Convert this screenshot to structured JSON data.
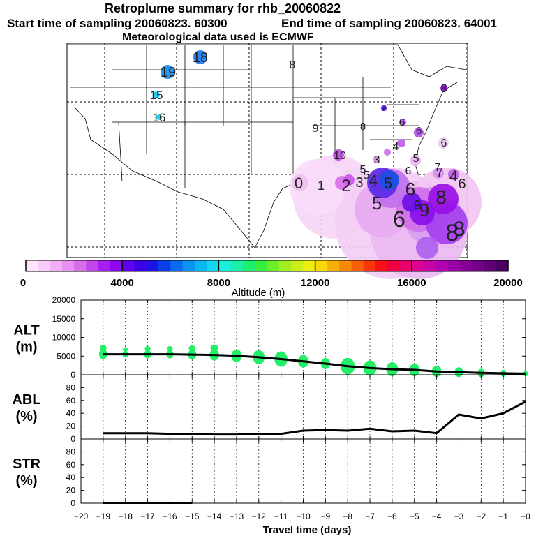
{
  "header": {
    "title": "Retroplume summary for rhb_20060822",
    "start_label": "Start time of sampling 20060823. 60300",
    "end_label": "End time of sampling 20060823. 64001",
    "met_label": "Meteorological data used is ECMWF"
  },
  "colorbar": {
    "label": "Altitude (m)",
    "ticks": [
      "0",
      "4000",
      "8000",
      "12000",
      "16000",
      "20000"
    ],
    "range": [
      0,
      20000
    ]
  },
  "colors": {
    "plume_light": "#f2c6f2",
    "plume_mid": "#d070e8",
    "plume_purple": "#9a10e6",
    "plume_blue": "#1a50e0",
    "alt_dots": "#22ee66"
  },
  "map": {
    "labels": [
      "18",
      "19",
      "15",
      "16",
      "8",
      "7",
      "8",
      "9",
      "8",
      "6",
      "6",
      "6",
      "5",
      "4",
      "3",
      "10",
      "5",
      "6",
      "7",
      "5",
      "0",
      "1",
      "2",
      "3",
      "4",
      "5",
      "6",
      "9",
      "8",
      "6",
      "4",
      "5",
      "6",
      "7",
      "8",
      "9",
      "8"
    ]
  },
  "chart_data": [
    {
      "type": "line",
      "name": "ALT",
      "ylabel": "ALT (m)",
      "ylabel_line1": "ALT",
      "ylabel_line2": "(m)",
      "ylim": [
        0,
        20000
      ],
      "yticks": [
        "0",
        "5000",
        "10000",
        "15000",
        "20000"
      ],
      "x": [
        -19,
        -18,
        -17,
        -16,
        -15,
        -14,
        -13,
        -12,
        -11,
        -10,
        -9,
        -8,
        -7,
        -6,
        -5,
        -4,
        -3,
        -2,
        -1,
        0
      ],
      "values": [
        5500,
        5500,
        5500,
        5500,
        5400,
        5300,
        5100,
        4700,
        4200,
        3600,
        3000,
        2300,
        1800,
        1500,
        1300,
        900,
        700,
        500,
        400,
        300
      ],
      "dot_sizes": [
        7,
        5,
        6,
        6,
        7,
        8,
        9,
        10,
        11,
        9,
        8,
        12,
        11,
        10,
        9,
        8,
        7,
        6,
        5,
        4
      ]
    },
    {
      "type": "line",
      "name": "ABL",
      "ylabel": "ABL (%)",
      "ylabel_line1": "ABL",
      "ylabel_line2": "(%)",
      "ylim": [
        0,
        100
      ],
      "yticks": [
        "0",
        "20",
        "40",
        "60",
        "80"
      ],
      "x": [
        -19,
        -18,
        -17,
        -16,
        -15,
        -14,
        -13,
        -12,
        -11,
        -10,
        -9,
        -8,
        -7,
        -6,
        -5,
        -4,
        -3,
        -2,
        -1,
        0
      ],
      "values": [
        9,
        9,
        9,
        8,
        8,
        7,
        7,
        8,
        8,
        13,
        14,
        13,
        16,
        12,
        13,
        9,
        38,
        32,
        40,
        58
      ]
    },
    {
      "type": "line",
      "name": "STR",
      "ylabel": "STR (%)",
      "ylabel_line1": "STR",
      "ylabel_line2": "(%)",
      "ylim": [
        0,
        100
      ],
      "yticks": [
        "0",
        "20",
        "40",
        "60",
        "80"
      ],
      "x": [
        -19,
        -18,
        -17,
        -16,
        -15
      ],
      "values": [
        0.5,
        0.5,
        0.5,
        0.5,
        0.5
      ]
    }
  ],
  "xaxis": {
    "label": "Travel time (days)",
    "xlim": [
      -20,
      0
    ],
    "ticks": [
      "−20",
      "−19",
      "−18",
      "−17",
      "−16",
      "−15",
      "−14",
      "−13",
      "−12",
      "−11",
      "−10",
      "−9",
      "−8",
      "−7",
      "−6",
      "−5",
      "−4",
      "−3",
      "−2",
      "−1",
      "−0"
    ]
  }
}
